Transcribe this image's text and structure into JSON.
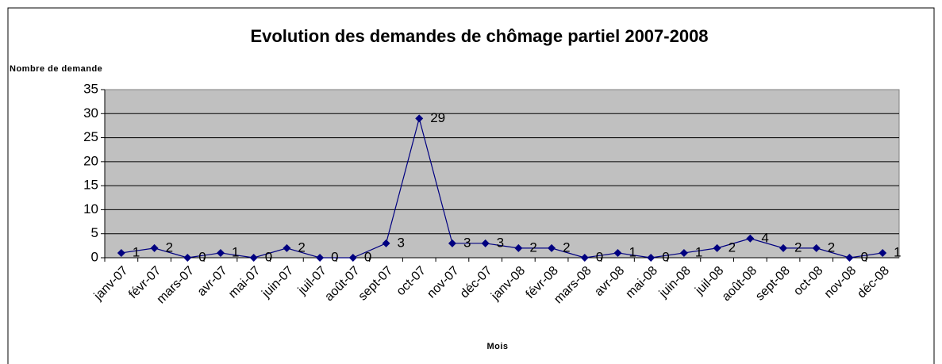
{
  "chart_data": {
    "type": "line",
    "title": "Evolution des demandes de chômage partiel 2007-2008",
    "y_label": "Nombre de demande",
    "x_label": "Mois",
    "categories": [
      "janv-07",
      "févr-07",
      "mars-07",
      "avr-07",
      "mai-07",
      "juin-07",
      "juil-07",
      "août-07",
      "sept-07",
      "oct-07",
      "nov-07",
      "déc-07",
      "janv-08",
      "févr-08",
      "mars-08",
      "avr-08",
      "mai-08",
      "juin-08",
      "juil-08",
      "août-08",
      "sept-08",
      "oct-08",
      "nov-08",
      "déc-08"
    ],
    "series": [
      {
        "color": "#000080",
        "values": [
          1,
          2,
          0,
          1,
          0,
          2,
          0,
          0,
          3,
          29,
          3,
          3,
          2,
          2,
          0,
          1,
          0,
          1,
          2,
          4,
          2,
          2,
          0,
          1
        ]
      }
    ],
    "ylim": [
      0,
      35
    ],
    "yticks": [
      0,
      5,
      10,
      15,
      20,
      25,
      30,
      35
    ],
    "grid": true
  }
}
